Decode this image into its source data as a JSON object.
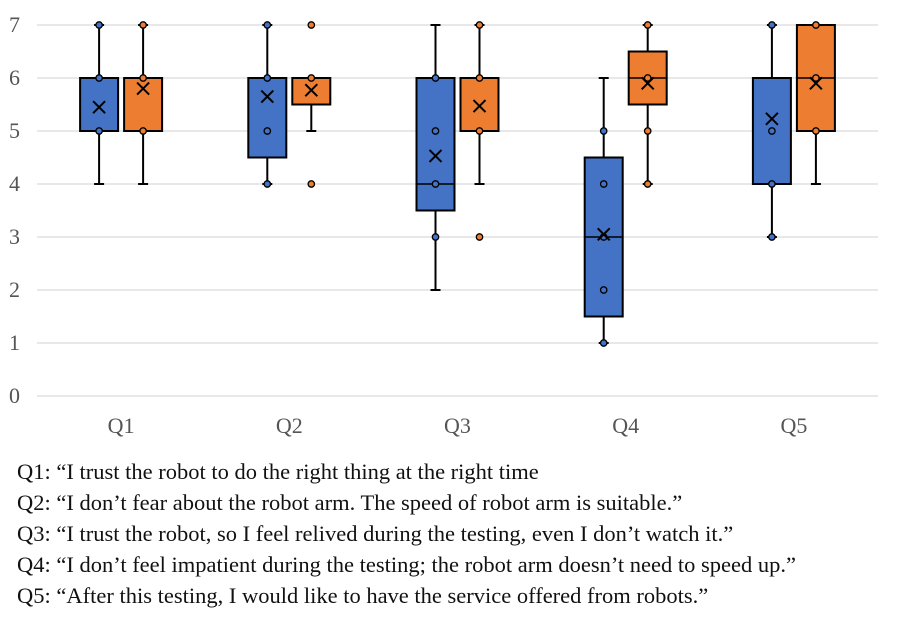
{
  "chart_data": {
    "type": "box",
    "categories": [
      "Q1",
      "Q2",
      "Q3",
      "Q4",
      "Q5"
    ],
    "ylim": [
      0,
      7
    ],
    "yticks": [
      "0",
      "1",
      "2",
      "3",
      "4",
      "5",
      "6",
      "7"
    ],
    "grid": true,
    "colors": {
      "blue": "#4472c4",
      "orange": "#ed7d31",
      "grid": "#d9d9d9",
      "line": "#000000"
    },
    "series": [
      {
        "color": "#4472c4",
        "boxes": [
          {
            "min": 4,
            "q1": 5,
            "median": 5,
            "q3": 6,
            "max": 7,
            "mean": 5.45,
            "points": [
              5,
              6,
              7
            ]
          },
          {
            "min": 4,
            "q1": 4.5,
            "median": 6,
            "q3": 6,
            "max": 7,
            "mean": 5.65,
            "points": [
              4,
              5,
              6,
              7
            ]
          },
          {
            "min": 2,
            "q1": 3.5,
            "median": 4,
            "q3": 6,
            "max": 7,
            "mean": 4.53,
            "points": [
              3,
              4,
              5,
              6
            ]
          },
          {
            "min": 1,
            "q1": 1.5,
            "median": 3,
            "q3": 4.5,
            "max": 6,
            "mean": 3.05,
            "points": [
              1,
              2,
              3,
              4,
              5
            ]
          },
          {
            "min": 3,
            "q1": 4,
            "median": 6,
            "q3": 6,
            "max": 7,
            "mean": 5.23,
            "points": [
              3,
              4,
              5,
              7
            ]
          }
        ]
      },
      {
        "color": "#ed7d31",
        "boxes": [
          {
            "min": 4,
            "q1": 5,
            "median": 6,
            "q3": 6,
            "max": 7,
            "mean": 5.8,
            "points": [
              5,
              6,
              7
            ]
          },
          {
            "min": 5,
            "q1": 5.5,
            "median": 6,
            "q3": 6,
            "max": 6,
            "mean": 5.77,
            "points": [
              4,
              6,
              7
            ]
          },
          {
            "min": 4,
            "q1": 5,
            "median": 6,
            "q3": 6,
            "max": 7,
            "mean": 5.47,
            "points": [
              3,
              5,
              6,
              7
            ]
          },
          {
            "min": 4,
            "q1": 5.5,
            "median": 6,
            "q3": 6.5,
            "max": 7,
            "mean": 5.9,
            "points": [
              4,
              5,
              6,
              7
            ]
          },
          {
            "min": 4,
            "q1": 5,
            "median": 6,
            "q3": 7,
            "max": 7,
            "mean": 5.9,
            "points": [
              5,
              6,
              7
            ]
          }
        ]
      }
    ]
  },
  "captions": [
    "Q1: “I trust the robot to do the right thing at the right time",
    "Q2: “I don’t fear about the robot arm. The speed of robot arm is suitable.”",
    "Q3: “I trust the robot, so I feel relived during the testing, even I don’t watch it.”",
    "Q4: “I don’t feel impatient during the testing; the robot arm doesn’t need to speed up.”",
    "Q5: “After this testing, I would like to have the service offered from robots.”"
  ]
}
